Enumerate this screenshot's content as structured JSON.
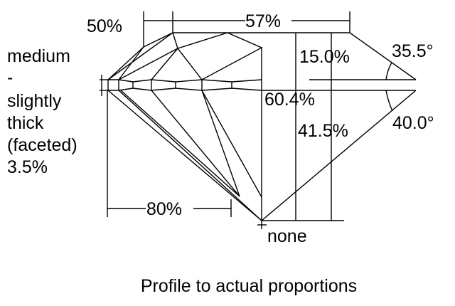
{
  "labels": {
    "table_ratio_small": "50%",
    "table_percent": "57%",
    "girdle_line1": "medium",
    "girdle_line2": "-",
    "girdle_line3": "slightly",
    "girdle_line4": "thick",
    "girdle_line5": "(faceted)",
    "girdle_percent": "3.5%",
    "crown_height": "15.0%",
    "crown_angle": "35.5°",
    "total_depth": "60.4%",
    "pavilion_depth": "41.5%",
    "pavilion_angle": "40.0°",
    "lower_half": "80%",
    "culet": "none"
  },
  "caption": "Profile to actual proportions",
  "colors": {
    "line": "#000000",
    "background": "#ffffff"
  }
}
